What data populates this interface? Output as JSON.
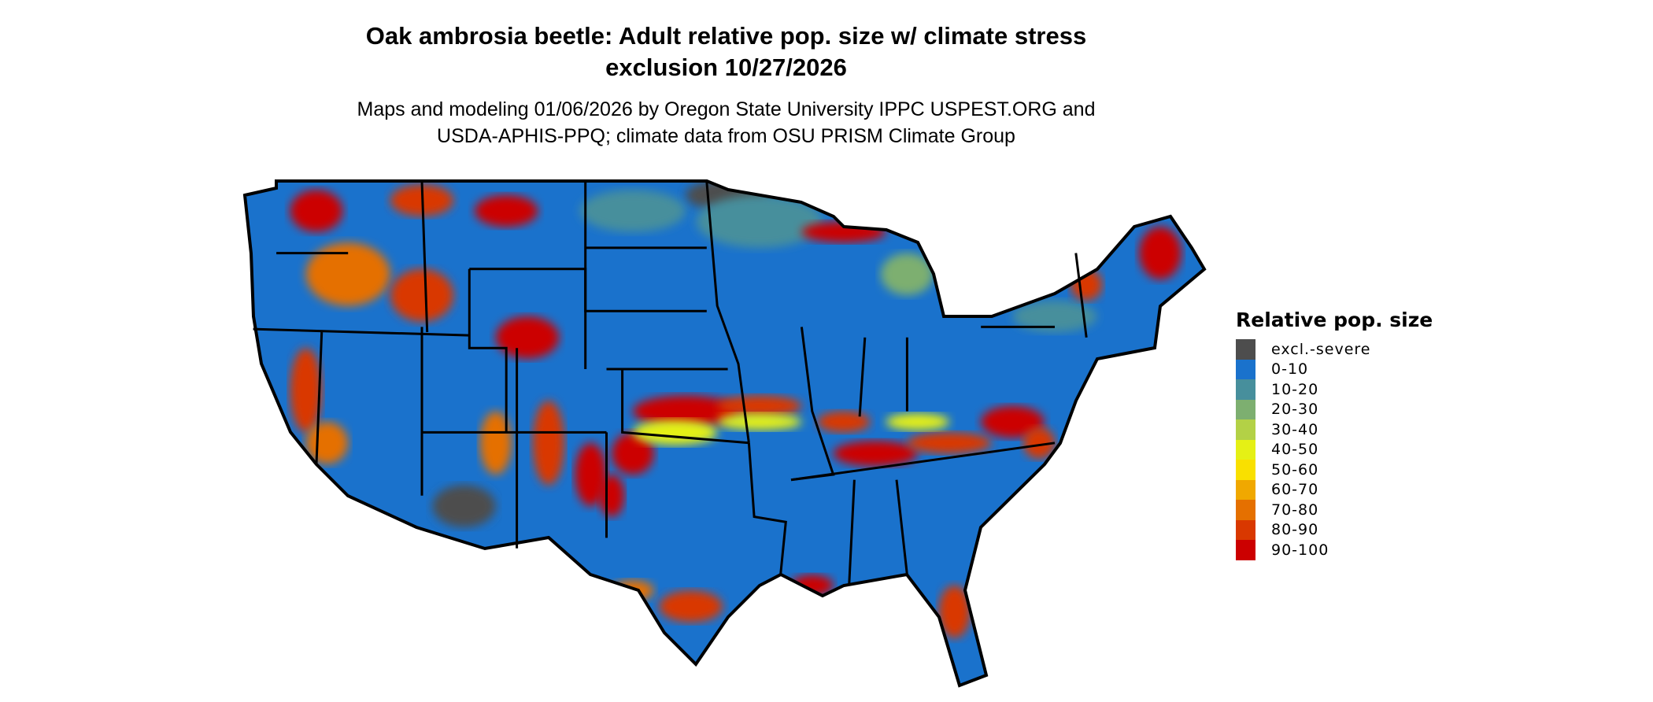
{
  "title_line1": "Oak ambrosia beetle: Adult relative pop. size w/ climate stress",
  "title_line2": "exclusion 10/27/2026",
  "subtitle_line1": "Maps and modeling 01/06/2026 by Oregon State University IPPC USPEST.ORG and",
  "subtitle_line2": "USDA-APHIS-PPQ; climate data from OSU PRISM Climate Group",
  "map_region": "Contiguous United States",
  "legend": {
    "title": "Relative pop. size",
    "items": [
      {
        "label": "excl.-severe",
        "color": "#4d4d4d"
      },
      {
        "label": "0-10",
        "color": "#1a72cc"
      },
      {
        "label": "10-20",
        "color": "#478f9c"
      },
      {
        "label": "20-30",
        "color": "#7daf70"
      },
      {
        "label": "30-40",
        "color": "#b3d146"
      },
      {
        "label": "40-50",
        "color": "#e5f015"
      },
      {
        "label": "50-60",
        "color": "#f9e000"
      },
      {
        "label": "60-70",
        "color": "#f0a800"
      },
      {
        "label": "70-80",
        "color": "#e57000"
      },
      {
        "label": "80-90",
        "color": "#d93800"
      },
      {
        "label": "90-100",
        "color": "#cc0000"
      }
    ]
  }
}
